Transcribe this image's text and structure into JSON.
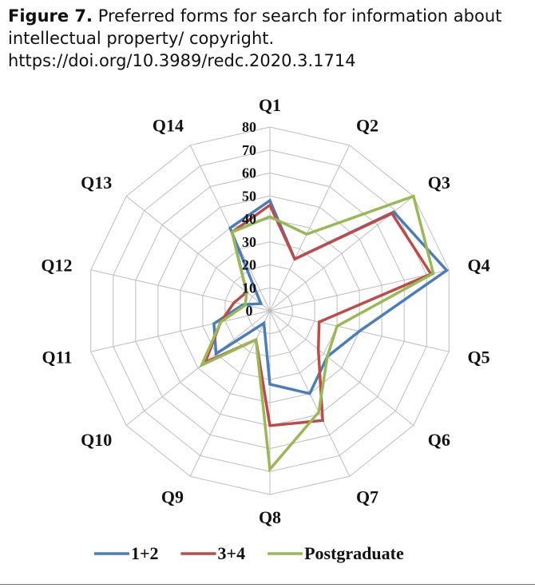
{
  "caption": {
    "label": "Figure 7.",
    "text": "Preferred forms for search for information about intellectual property/ copyright.",
    "url": "https://doi.org/10.3989/redc.2020.3.1714"
  },
  "chart_data": {
    "type": "radar",
    "categories": [
      "Q1",
      "Q2",
      "Q3",
      "Q4",
      "Q5",
      "Q6",
      "Q7",
      "Q8",
      "Q9",
      "Q10",
      "Q11",
      "Q12",
      "Q13",
      "Q14"
    ],
    "ticks": [
      "0",
      "10",
      "20",
      "30",
      "40",
      "50",
      "60",
      "70",
      "80"
    ],
    "rlim": [
      0,
      80
    ],
    "grid": true,
    "legend_position": "bottom",
    "series": [
      {
        "name": "1+2",
        "color": "#4a7ebb",
        "values": [
          48,
          25,
          69,
          79,
          40,
          32,
          40,
          32,
          6,
          30,
          25,
          12,
          5,
          40
        ]
      },
      {
        "name": "3+4",
        "color": "#be4b48",
        "values": [
          46,
          25,
          68,
          72,
          22,
          27,
          53,
          50,
          14,
          36,
          22,
          16,
          13,
          38
        ]
      },
      {
        "name": "Postgraduate",
        "color": "#98b954",
        "values": [
          41,
          37,
          80,
          73,
          30,
          32,
          49,
          69,
          14,
          38,
          22,
          11,
          13,
          38
        ]
      }
    ]
  }
}
